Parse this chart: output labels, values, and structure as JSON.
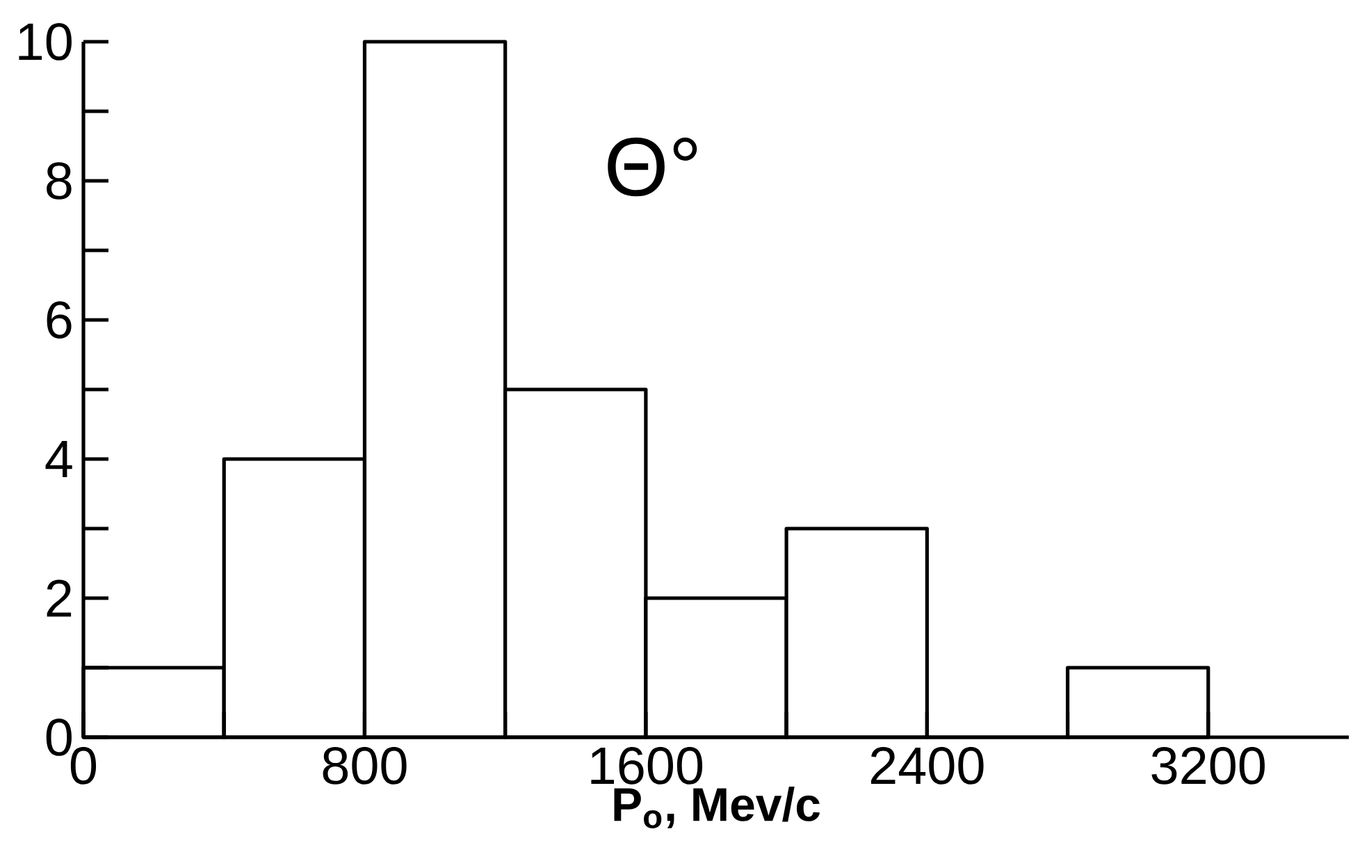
{
  "chart_data": {
    "type": "histogram",
    "xlabel": "P$_{o}$, Mev/c",
    "bins": [
      0,
      400,
      800,
      1200,
      1600,
      2000,
      2400,
      2800,
      3200
    ],
    "values": [
      1,
      4,
      10,
      5,
      2,
      3,
      0,
      1
    ],
    "color": "#000000",
    "xlim": [
      0,
      3600
    ],
    "ylim": [
      0,
      10
    ],
    "xticks": [
      0,
      800,
      1600,
      2400,
      3200
    ],
    "yticks": [
      0,
      2,
      4,
      6,
      8,
      10
    ],
    "annotations": [
      "Θ°"
    ]
  }
}
